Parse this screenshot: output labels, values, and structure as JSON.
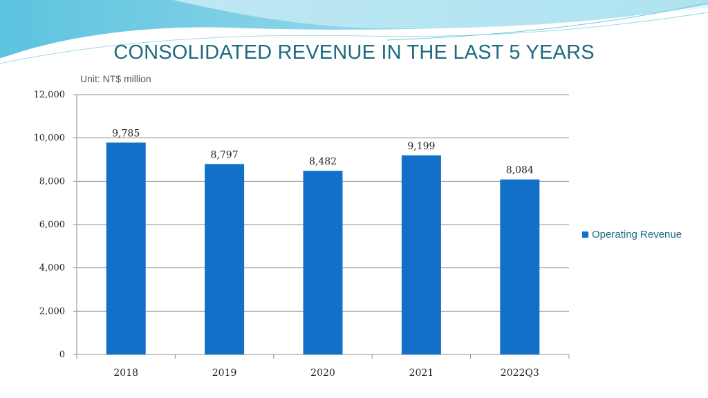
{
  "slide": {
    "title": "CONSOLIDATED REVENUE IN THE LAST 5 YEARS",
    "unit_note": "Unit: NT$ million"
  },
  "colors": {
    "bar": "#1270c8",
    "title": "#1d6a80",
    "banner_dark": "#4ab8d8",
    "banner_light": "#bfe8f2"
  },
  "chart_data": {
    "type": "bar",
    "title": "CONSOLIDATED REVENUE IN THE LAST 5 YEARS",
    "xlabel": "",
    "ylabel": "",
    "categories": [
      "2018",
      "2019",
      "2020",
      "2021",
      "2022Q3"
    ],
    "series": [
      {
        "name": "Operating Revenue",
        "values": [
          9785,
          8797,
          8482,
          9199,
          8084
        ]
      }
    ],
    "data_labels": [
      "9,785",
      "8,797",
      "8,482",
      "9,199",
      "8,084"
    ],
    "y_ticks": [
      "0",
      "2,000",
      "4,000",
      "6,000",
      "8,000",
      "10,000",
      "12,000"
    ],
    "ylim": [
      0,
      12000
    ],
    "grid": true,
    "legend": "right"
  }
}
